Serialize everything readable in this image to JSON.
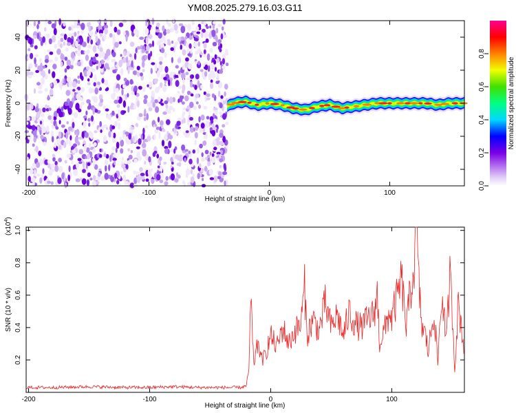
{
  "title": "YM08.2025.279.16.03.G11",
  "colors": {
    "snr_line": "#ee2222",
    "axis": "#000000",
    "frame": "#000000"
  },
  "colorbar": {
    "label": "Normalized spectral amplitude",
    "ticks": [
      "0.0",
      "0.2",
      "0.4",
      "0.6",
      "0.8"
    ],
    "tick_values": [
      0.0,
      0.2,
      0.4,
      0.6,
      0.8
    ],
    "range": [
      0.0,
      1.0
    ]
  },
  "chart_data": [
    {
      "type": "heatmap",
      "title": "YM08.2025.279.16.03.G11",
      "xlabel": "Height of straight line (km)",
      "ylabel": "Frequency (Hz)",
      "xlim": [
        -202,
        162
      ],
      "ylim": [
        -50,
        50
      ],
      "xticks": [
        -200,
        -100,
        0,
        100
      ],
      "xtick_labels": [
        "-200",
        "-100",
        "0",
        "100"
      ],
      "yticks": [
        -40,
        -20,
        0,
        20,
        40
      ],
      "ytick_labels": [
        "-40",
        "-20",
        "0",
        "20",
        "40"
      ],
      "noise_region_x": [
        -202,
        -35
      ],
      "ridge": {
        "x": [
          -35,
          -30,
          -20,
          -10,
          0,
          10,
          20,
          30,
          40,
          50,
          60,
          70,
          80,
          90,
          100,
          110,
          120,
          130,
          140,
          150,
          162
        ],
        "y": [
          -2,
          0,
          1,
          -1,
          0,
          -1,
          -3,
          -4,
          -2,
          -1,
          -3,
          -2,
          -1,
          0,
          0,
          0,
          0,
          0,
          -1,
          0,
          0
        ]
      }
    },
    {
      "type": "line",
      "xlabel": "Height of straight line (km)",
      "ylabel": "SNR (10 * v/v)",
      "y_multiplier": "(x10",
      "y_multiplier_exp": "4",
      "y_multiplier_close": ")",
      "xlim": [
        -202,
        160
      ],
      "ylim": [
        0,
        1.02
      ],
      "xticks": [
        -200,
        -100,
        0,
        100
      ],
      "xtick_labels": [
        "-200",
        "-100",
        "0",
        "100"
      ],
      "yticks": [
        0.2,
        0.4,
        0.6,
        0.8,
        1.0
      ],
      "ytick_labels": [
        "0.2",
        "0.4",
        "0.6",
        "0.8",
        "1.0"
      ],
      "series": [
        {
          "name": "SNR",
          "x": [
            -202,
            -180,
            -150,
            -120,
            -100,
            -80,
            -60,
            -40,
            -25,
            -20,
            -18,
            -17,
            -16,
            -15,
            -14,
            -12,
            -10,
            -8,
            -5,
            0,
            5,
            10,
            15,
            20,
            25,
            28,
            30,
            35,
            40,
            45,
            50,
            55,
            60,
            65,
            70,
            75,
            80,
            85,
            88,
            90,
            92,
            95,
            98,
            100,
            102,
            105,
            108,
            110,
            112,
            115,
            118,
            120,
            121,
            122,
            125,
            128,
            130,
            135,
            138,
            140,
            142,
            145,
            148,
            150,
            152,
            155,
            158,
            160
          ],
          "values": [
            0.03,
            0.03,
            0.035,
            0.03,
            0.03,
            0.035,
            0.03,
            0.03,
            0.03,
            0.04,
            0.15,
            0.42,
            0.55,
            0.3,
            0.18,
            0.25,
            0.32,
            0.2,
            0.22,
            0.35,
            0.28,
            0.4,
            0.3,
            0.38,
            0.42,
            0.65,
            0.35,
            0.45,
            0.38,
            0.55,
            0.4,
            0.48,
            0.35,
            0.5,
            0.42,
            0.4,
            0.45,
            0.48,
            0.6,
            0.3,
            0.35,
            0.4,
            0.5,
            0.45,
            0.52,
            0.6,
            0.7,
            0.55,
            0.4,
            0.6,
            0.75,
            0.95,
            1.02,
            0.7,
            0.4,
            0.35,
            0.25,
            0.5,
            0.18,
            0.45,
            0.6,
            0.3,
            0.72,
            0.5,
            0.15,
            0.55,
            0.38,
            0.25
          ]
        }
      ]
    }
  ]
}
